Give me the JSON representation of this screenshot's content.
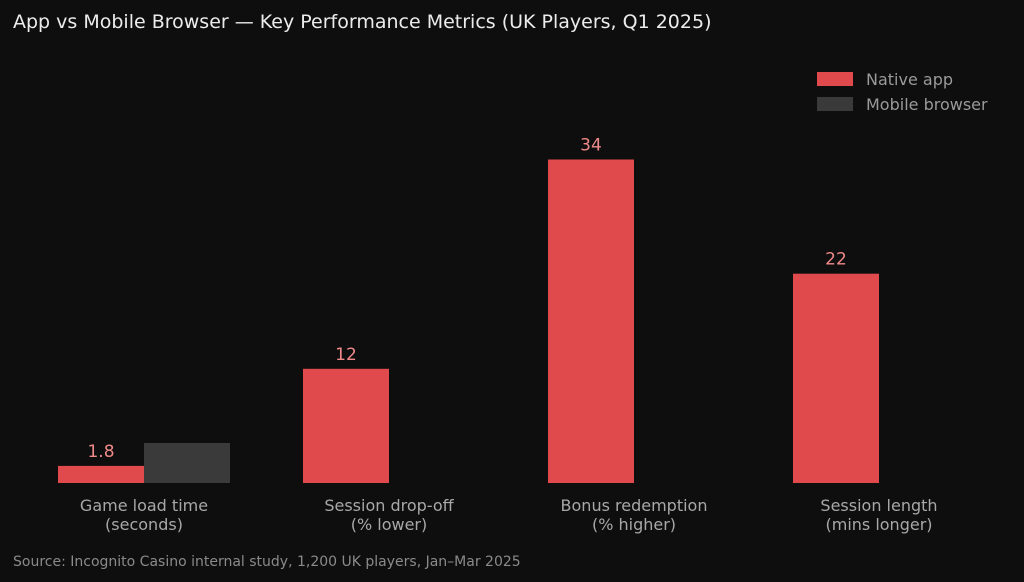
{
  "chart_data": {
    "type": "bar",
    "title": "App vs Mobile Browser — Key Performance Metrics (UK Players, Q1 2025)",
    "categories": [
      [
        "Game load time",
        "(seconds)"
      ],
      [
        "Session drop-off",
        "(% lower)"
      ],
      [
        "Bonus redemption",
        "(% higher)"
      ],
      [
        "Session length",
        "(mins longer)"
      ]
    ],
    "series": [
      {
        "name": "Native app",
        "color": "#e04a4c",
        "values": [
          1.8,
          12,
          34,
          22
        ],
        "labels": [
          "1.8",
          "12",
          "34",
          "22"
        ]
      },
      {
        "name": "Mobile browser",
        "color": "#3a3a3a",
        "values": [
          4.2,
          null,
          null,
          null
        ]
      }
    ],
    "ylim": [
      0,
      35
    ],
    "grid": false,
    "legend": "top-right",
    "xlabel": "",
    "ylabel": "",
    "source": "Source: Incognito Casino internal study, 1,200 UK players, Jan–Mar 2025"
  }
}
